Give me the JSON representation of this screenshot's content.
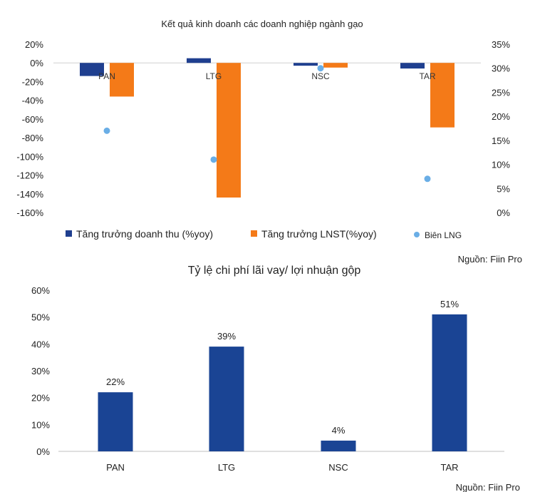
{
  "chart_data": [
    {
      "type": "bar",
      "title": "Kết quả kinh doanh các doanh nghiệp ngành gạo",
      "categories": [
        "PAN",
        "LTG",
        "NSC",
        "TAR"
      ],
      "series": [
        {
          "name": "Tăng trưởng doanh thu (%yoy)",
          "axis": "left",
          "color": "#1f3f8f",
          "values": [
            -14,
            5,
            -3,
            -6
          ]
        },
        {
          "name": "Tăng trưởng LNST(%yoy)",
          "axis": "left",
          "color": "#f47a18",
          "values": [
            -36,
            -144,
            -5,
            -69
          ]
        },
        {
          "name": "Biên LNG",
          "axis": "right",
          "kind": "scatter",
          "color": "#6aaee6",
          "values": [
            17,
            11,
            30,
            7
          ]
        }
      ],
      "ylim": [
        -160,
        20
      ],
      "y_ticks": [
        "20%",
        "0%",
        "-20%",
        "-40%",
        "-60%",
        "-80%",
        "-100%",
        "-120%",
        "-140%",
        "-160%"
      ],
      "y2lim": [
        0,
        35
      ],
      "y2_ticks": [
        "35%",
        "30%",
        "25%",
        "20%",
        "15%",
        "10%",
        "5%",
        "0%"
      ],
      "legend": "bottom",
      "source": "Nguồn: Fiin Pro"
    },
    {
      "type": "bar",
      "title": "Tỷ lệ chi phí lãi vay/ lợi nhuận gộp",
      "categories": [
        "PAN",
        "LTG",
        "NSC",
        "TAR"
      ],
      "values": [
        22,
        39,
        4,
        51
      ],
      "labels": [
        "22%",
        "39%",
        "4%",
        "51%"
      ],
      "color": "#1a4494",
      "ylim": [
        0,
        60
      ],
      "y_ticks": [
        "60%",
        "50%",
        "40%",
        "30%",
        "20%",
        "10%",
        "0%"
      ],
      "source": "Nguồn: Fiin Pro"
    }
  ]
}
